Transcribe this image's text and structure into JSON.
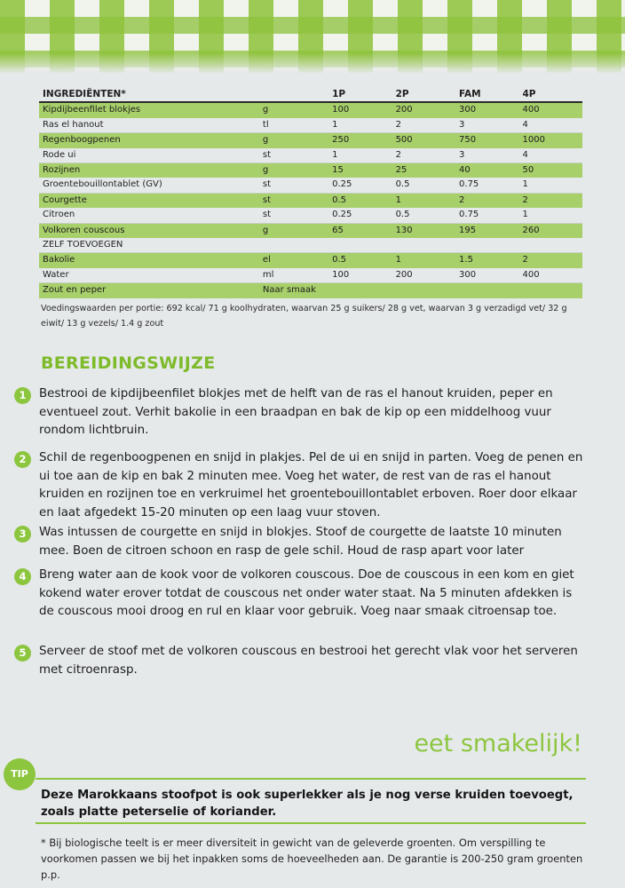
{
  "table": {
    "headers": [
      "INGREDIËNTEN*",
      "",
      "1P",
      "2P",
      "FAM",
      "4P"
    ],
    "rows": [
      {
        "name": "Kipdijbeenfilet blokjes",
        "unit": "g",
        "q1": "100",
        "q2": "200",
        "fam": "300",
        "q4": "400",
        "shaded": true
      },
      {
        "name": "Ras el hanout",
        "unit": "tl",
        "q1": "1",
        "q2": "2",
        "fam": "3",
        "q4": "4",
        "shaded": false
      },
      {
        "name": "Regenboogpenen",
        "unit": "g",
        "q1": "250",
        "q2": "500",
        "fam": "750",
        "q4": "1000",
        "shaded": true
      },
      {
        "name": "Rode ui",
        "unit": "st",
        "q1": "1",
        "q2": "2",
        "fam": "3",
        "q4": "4",
        "shaded": false
      },
      {
        "name": "Rozijnen",
        "unit": "g",
        "q1": "15",
        "q2": "25",
        "fam": "40",
        "q4": "50",
        "shaded": true
      },
      {
        "name": "Groentebouillontablet (GV)",
        "unit": "st",
        "q1": "0.25",
        "q2": "0.5",
        "fam": "0.75",
        "q4": "1",
        "shaded": false
      },
      {
        "name": "Courgette",
        "unit": "st",
        "q1": "0.5",
        "q2": "1",
        "fam": "2",
        "q4": "2",
        "shaded": true
      },
      {
        "name": "Citroen",
        "unit": "st",
        "q1": "0.25",
        "q2": "0.5",
        "fam": "0.75",
        "q4": "1",
        "shaded": false
      },
      {
        "name": "Volkoren couscous",
        "unit": "g",
        "q1": "65",
        "q2": "130",
        "fam": "195",
        "q4": "260",
        "shaded": true
      },
      {
        "name": "ZELF TOEVOEGEN",
        "unit": "",
        "q1": "",
        "q2": "",
        "fam": "",
        "q4": "",
        "shaded": false
      },
      {
        "name": "Bakolie",
        "unit": "el",
        "q1": "0.5",
        "q2": "1",
        "fam": "1.5",
        "q4": "2",
        "shaded": true
      },
      {
        "name": "Water",
        "unit": "ml",
        "q1": "100",
        "q2": "200",
        "fam": "300",
        "q4": "400",
        "shaded": false
      },
      {
        "name": "Zout en peper",
        "unit": "Naar smaak",
        "q1": "",
        "q2": "",
        "fam": "",
        "q4": "",
        "shaded": true
      }
    ]
  },
  "nutrition": "Voedingswaarden per portie: 692 kcal/ 71 g koolhydraten, waarvan 25 g suikers/ 28 g vet, waarvan 3 g verzadigd vet/ 32 g eiwit/ 13 g vezels/ 1.4 g zout",
  "heading": "BEREIDINGSWIJZE",
  "steps": [
    {
      "num": "1",
      "text": "Bestrooi de kipdijbeenfilet blokjes met de helft van de ras el hanout kruiden, peper en eventueel zout. Verhit bakolie in een braadpan en bak de kip op een middelhoog vuur rondom lichtbruin."
    },
    {
      "num": "2",
      "text": "Schil de regenboogpenen en snijd in plakjes. Pel de ui en snijd in parten. Voeg de penen en ui toe aan de kip en bak 2 minuten mee. Voeg het water, de rest van de ras el hanout kruiden en rozijnen toe en verkruimel het groentebouillontablet erboven. Roer door elkaar en laat afgedekt 15-20 minuten op een laag vuur stoven."
    },
    {
      "num": "3",
      "text": "Was intussen de courgette en snijd in blokjes. Stoof de courgette de laatste 10 minuten mee. Boen de citroen schoon en rasp de gele schil. Houd de rasp apart voor later"
    },
    {
      "num": "4",
      "text": "Breng water aan de kook voor de volkoren couscous. Doe de couscous in een kom en giet kokend water erover totdat de couscous net onder water staat. Na 5 minuten afdekken is de couscous mooi droog en rul en klaar voor gebruik. Voeg naar smaak citroensap toe."
    },
    {
      "num": "5",
      "text": "Serveer de stoof met de volkoren couscous en bestrooi het gerecht vlak voor het serveren met citroenrasp."
    }
  ],
  "sign_off": "eet smakelijk!",
  "tip": {
    "label": "TIP",
    "text": "Deze Marokkaans stoofpot is ook superlekker als je nog verse kruiden toevoegt, zoals platte peterselie of koriander."
  },
  "footnote": "* Bij biologische teelt is er meer diversiteit in gewicht van de geleverde groenten. Om verspilling te voorkomen passen we bij het inpakken soms de hoeveelheden aan. De garantie is 200-250 gram groenten p.p.",
  "colors": {
    "accent": "#8cc63f",
    "row_shade": "#a7cf6a",
    "background": "#e6e9ea"
  }
}
